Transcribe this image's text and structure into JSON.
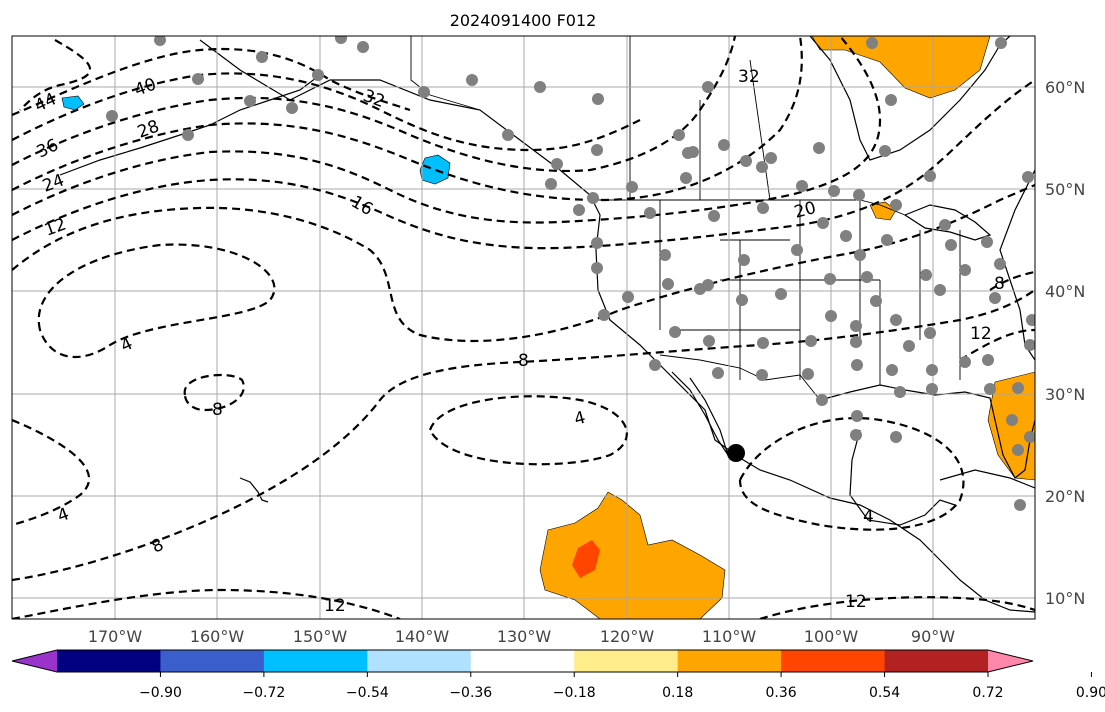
{
  "title": "2024091400 F012",
  "longitude_ticks": [
    "170°W",
    "160°W",
    "150°W",
    "140°W",
    "130°W",
    "120°W",
    "110°W",
    "100°W",
    "90°W"
  ],
  "latitude_ticks": [
    "10°N",
    "20°N",
    "30°N",
    "40°N",
    "50°N",
    "60°N"
  ],
  "colorbar": {
    "tick_labels": [
      "−0.90",
      "−0.72",
      "−0.54",
      "−0.36",
      "−0.18",
      "0.18",
      "0.36",
      "0.54",
      "0.72",
      "0.90"
    ],
    "colors": [
      "#9933cc",
      "#000080",
      "#3a5fcd",
      "#00bfff",
      "#b0e2ff",
      "#ffffff",
      "#ffec8b",
      "#ffa500",
      "#ff4500",
      "#b22222",
      "#ff88aa"
    ],
    "extend": "both"
  },
  "contour_labels": [
    "44",
    "40",
    "36",
    "32",
    "28",
    "24",
    "12",
    "16",
    "20",
    "32",
    "4",
    "8",
    "8",
    "4",
    "4",
    "8",
    "4",
    "12",
    "12",
    "8",
    "12"
  ],
  "colors": {
    "contour": "#000000",
    "station": "#808080",
    "positive_fill": "#ffa500",
    "strong_positive_fill": "#ff4500",
    "negative_fill": "#00bfff"
  }
}
